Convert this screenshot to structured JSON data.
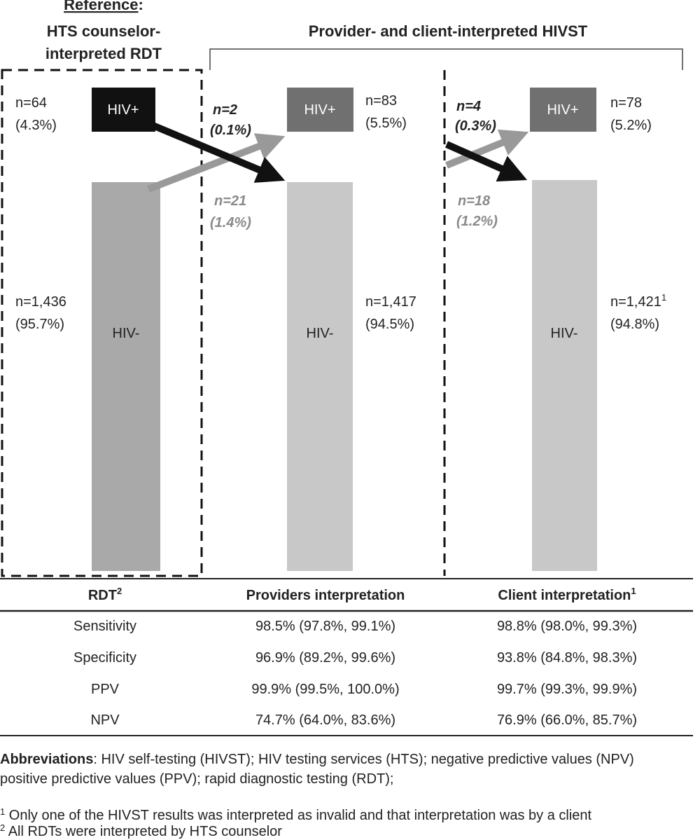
{
  "reference": {
    "title": "Reference",
    "colon": ":",
    "lines": [
      "HTS counselor-",
      "interpreted RDT"
    ]
  },
  "hivst_title": "Provider- and client-interpreted HIVST",
  "columns": [
    {
      "pos_box": "HIV+",
      "neg_box": "HIV-",
      "pos_n": "n=64",
      "pos_pct": "(4.3%)",
      "neg_n": "n=1,436",
      "neg_pct": "(95.7%)"
    },
    {
      "pos_box": "HIV+",
      "neg_box": "HIV-",
      "pos_n": "n=83",
      "pos_pct": "(5.5%)",
      "neg_n": "n=1,417",
      "neg_pct": "(94.5%)",
      "to_neg_n": "n=2",
      "to_neg_pct": "(0.1%)",
      "to_pos_n": "n=21",
      "to_pos_pct": "(1.4%)"
    },
    {
      "pos_box": "HIV+",
      "neg_box": "HIV-",
      "pos_n": "n=78",
      "pos_pct": "(5.2%)",
      "neg_n": "n=1,421",
      "neg_sup": "1",
      "neg_pct": "(94.8%)",
      "to_neg_n": "n=4",
      "to_neg_pct": "(0.3%)",
      "to_pos_n": "n=18",
      "to_pos_pct": "(1.2%)"
    }
  ],
  "table": {
    "header": [
      {
        "text": "RDT",
        "sup": "2"
      },
      {
        "text": "Providers interpretation"
      },
      {
        "text": "Client interpretation",
        "sup": "1"
      }
    ],
    "rows": [
      [
        "Sensitivity",
        "98.5% (97.8%, 99.1%)",
        "98.8% (98.0%, 99.3%)"
      ],
      [
        "Specificity",
        "96.9% (89.2%, 99.6%)",
        "93.8% (84.8%, 98.3%)"
      ],
      [
        "PPV",
        "99.9% (99.5%, 100.0%)",
        "99.7% (99.3%, 99.9%)"
      ],
      [
        "NPV",
        "74.7% (64.0%, 83.6%)",
        "76.9% (66.0%, 85.7%)"
      ]
    ]
  },
  "abbreviations": {
    "label": "Abbreviations",
    "lines": [
      ": HIV self-testing (HIVST); HIV testing services (HTS); negative predictive values (NPV)",
      "positive predictive values (PPV); rapid diagnostic testing (RDT);"
    ]
  },
  "footnotes": [
    {
      "mark": "1",
      "text": " Only one of the HIVST results was interpreted as invalid and that interpretation was by a client"
    },
    {
      "mark": "2",
      "text": " All RDTs were interpreted by HTS counselor"
    }
  ]
}
